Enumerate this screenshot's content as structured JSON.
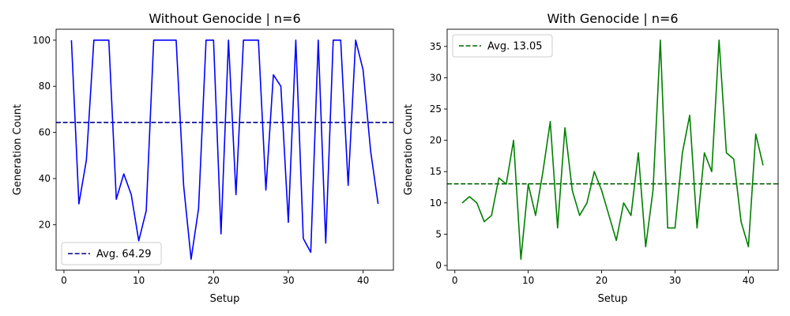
{
  "chart_data": [
    {
      "type": "line",
      "title": "Without Genocide | n=6",
      "xlabel": "Setup",
      "ylabel": "Generation Count",
      "xlim": [
        -1.05,
        44.05
      ],
      "ylim": [
        0.25,
        104.75
      ],
      "xticks": [
        0,
        10,
        20,
        30,
        40
      ],
      "yticks": [
        20,
        40,
        60,
        80,
        100
      ],
      "grid": false,
      "legend_position": "lower-left",
      "series": [
        {
          "color": "#0000ff",
          "x": [
            1,
            2,
            3,
            4,
            5,
            6,
            7,
            8,
            9,
            10,
            11,
            12,
            13,
            14,
            15,
            16,
            17,
            18,
            19,
            20,
            21,
            22,
            23,
            24,
            25,
            26,
            27,
            28,
            29,
            30,
            31,
            32,
            33,
            34,
            35,
            36,
            37,
            38,
            39,
            40,
            41,
            42
          ],
          "values": [
            100,
            29,
            48,
            100,
            100,
            100,
            31,
            42,
            33,
            13,
            26,
            100,
            100,
            100,
            100,
            37,
            5,
            27,
            100,
            100,
            16,
            100,
            33,
            100,
            100,
            100,
            35,
            85,
            80,
            21,
            100,
            14,
            8,
            100,
            12,
            100,
            100,
            37,
            100,
            87,
            52,
            29
          ]
        }
      ],
      "average": {
        "label": "Avg. 64.29",
        "value": 64.29,
        "color": "#00008b"
      }
    },
    {
      "type": "line",
      "title": "With Genocide | n=6",
      "xlabel": "Setup",
      "ylabel": "Generation Count",
      "xlim": [
        -1.05,
        44.05
      ],
      "ylim": [
        -0.75,
        37.75
      ],
      "xticks": [
        0,
        10,
        20,
        30,
        40
      ],
      "yticks": [
        0,
        5,
        10,
        15,
        20,
        25,
        30,
        35
      ],
      "grid": false,
      "legend_position": "upper-left",
      "series": [
        {
          "color": "#008000",
          "x": [
            1,
            2,
            3,
            4,
            5,
            6,
            7,
            8,
            9,
            10,
            11,
            12,
            13,
            14,
            15,
            16,
            17,
            18,
            19,
            20,
            21,
            22,
            23,
            24,
            25,
            26,
            27,
            28,
            29,
            30,
            31,
            32,
            33,
            34,
            35,
            36,
            37,
            38,
            39,
            40,
            41,
            42
          ],
          "values": [
            10,
            11,
            10,
            7,
            8,
            14,
            13,
            20,
            1,
            13,
            8,
            15,
            23,
            6,
            22,
            12,
            8,
            10,
            15,
            12,
            8,
            4,
            10,
            8,
            18,
            3,
            12,
            36,
            6,
            6,
            18,
            24,
            6,
            18,
            15,
            36,
            18,
            17,
            7,
            3,
            21,
            16
          ]
        }
      ],
      "average": {
        "label": "Avg. 13.05",
        "value": 13.05,
        "color": "#006400"
      }
    }
  ]
}
